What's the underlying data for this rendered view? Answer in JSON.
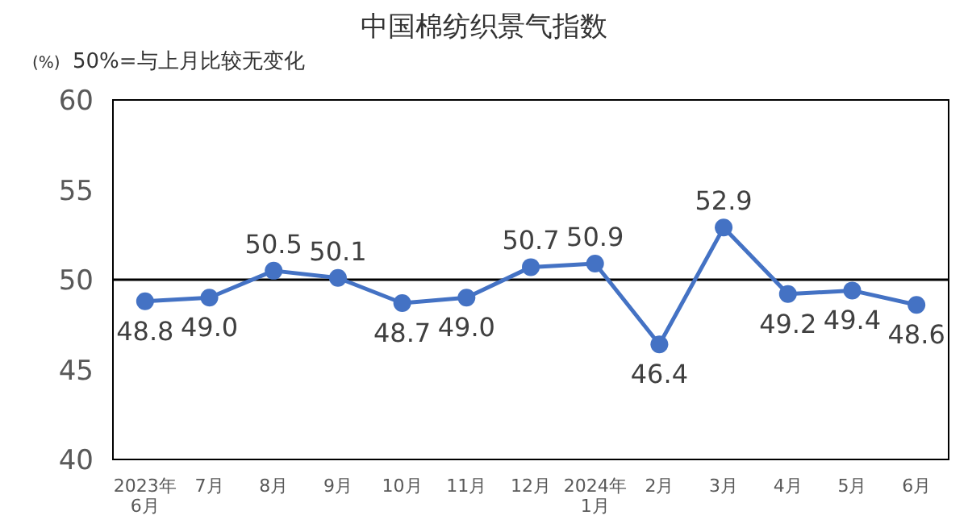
{
  "chart_data": {
    "type": "line",
    "title": "中国棉纺织景气指数",
    "annotations": [
      "(%)",
      "50%=与上月比较无变化"
    ],
    "categories": [
      "2023年\n6月",
      "7月",
      "8月",
      "9月",
      "10月",
      "11月",
      "12月",
      "2024年\n1月",
      "2月",
      "3月",
      "4月",
      "5月",
      "6月"
    ],
    "series": [
      {
        "color": "#4472c4",
        "values": [
          48.8,
          49.0,
          50.5,
          50.1,
          48.7,
          49.0,
          50.7,
          50.9,
          46.4,
          52.9,
          49.2,
          49.4,
          48.6
        ],
        "value_labels": [
          "48.8",
          "49.0",
          "50.5",
          "50.1",
          "48.7",
          "49.0",
          "50.7",
          "50.9",
          "46.4",
          "52.9",
          "49.2",
          "49.4",
          "48.6"
        ]
      }
    ],
    "ylim": [
      40,
      60
    ],
    "yticks": [
      40,
      45,
      50,
      55,
      60
    ],
    "ref_lines": [
      {
        "axis": "y",
        "value": 50,
        "color": "#000000"
      }
    ],
    "marker": "circle",
    "line_style": "solid"
  }
}
